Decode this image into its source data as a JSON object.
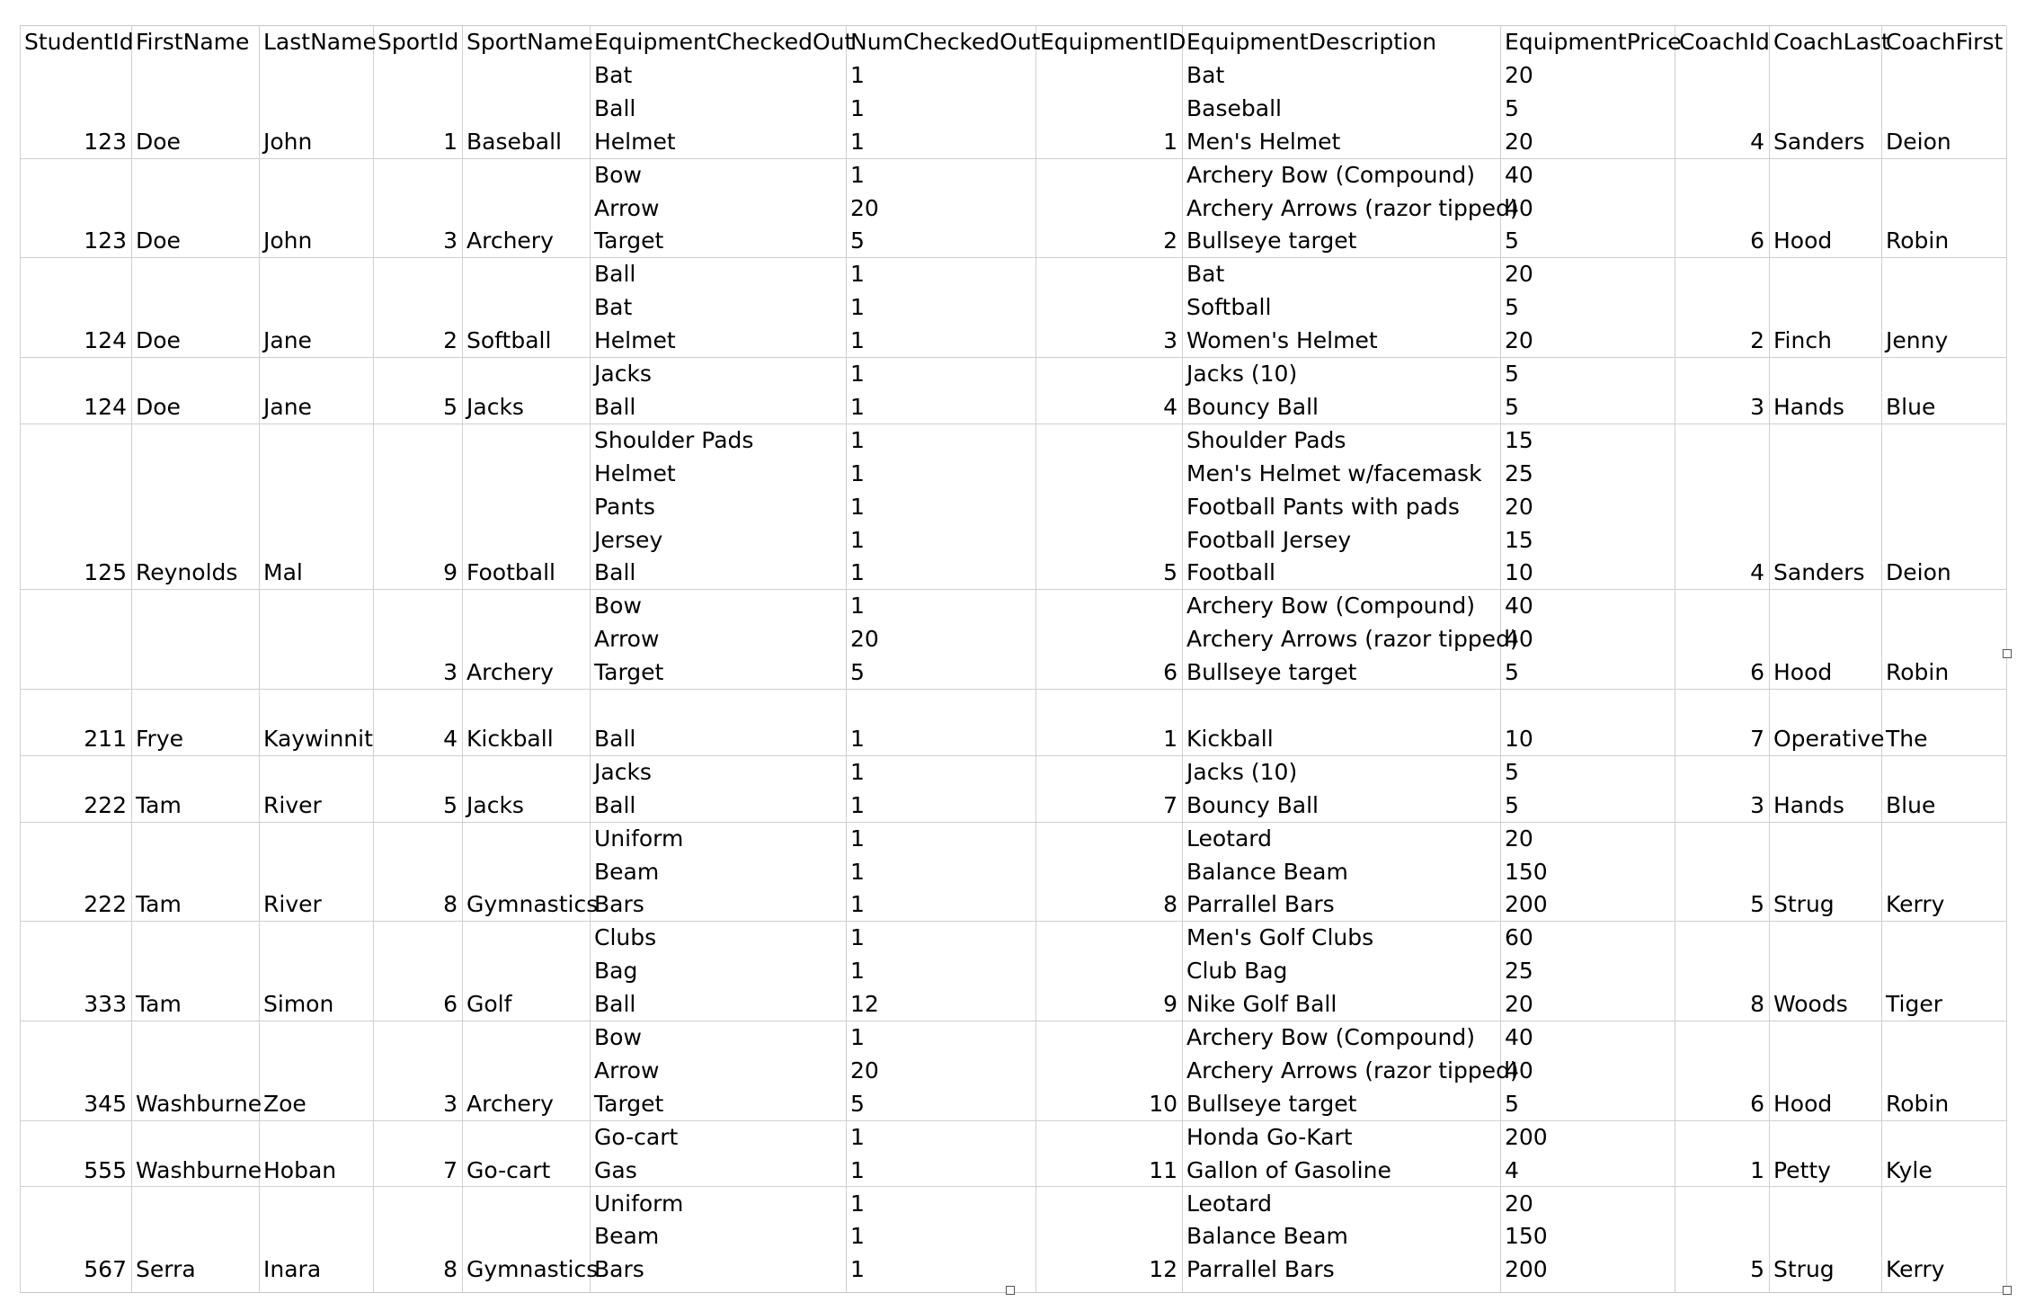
{
  "table": {
    "headers": [
      "StudentId",
      "FirstName",
      "LastName",
      "SportId",
      "SportName",
      "EquipmentCheckedOut",
      "NumCheckedOut",
      "EquipmentID",
      "EquipmentDescription",
      "EquipmentPrice",
      "CoachId",
      "CoachLast",
      "CoachFirst"
    ],
    "rows": [
      [
        "",
        "",
        "",
        "",
        "",
        "Bat",
        "1",
        "",
        "Bat",
        "20",
        "",
        "",
        ""
      ],
      [
        "",
        "",
        "",
        "",
        "",
        "Ball",
        "1",
        "",
        "Baseball",
        "5",
        "",
        "",
        ""
      ],
      [
        "123",
        "Doe",
        "John",
        "1",
        "Baseball",
        "Helmet",
        "1",
        "1",
        "Men's Helmet",
        "20",
        "4",
        "Sanders",
        "Deion"
      ],
      [
        "",
        "",
        "",
        "",
        "",
        "Bow",
        "1",
        "",
        "Archery Bow (Compound)",
        "40",
        "",
        "",
        ""
      ],
      [
        "",
        "",
        "",
        "",
        "",
        "Arrow",
        "20",
        "",
        "Archery Arrows (razor tipped)",
        "40",
        "",
        "",
        ""
      ],
      [
        "123",
        "Doe",
        "John",
        "3",
        "Archery",
        "Target",
        "5",
        "2",
        "Bullseye target",
        "5",
        "6",
        "Hood",
        "Robin"
      ],
      [
        "",
        "",
        "",
        "",
        "",
        "Ball",
        "1",
        "",
        "Bat",
        "20",
        "",
        "",
        ""
      ],
      [
        "",
        "",
        "",
        "",
        "",
        "Bat",
        "1",
        "",
        "Softball",
        "5",
        "",
        "",
        ""
      ],
      [
        "124",
        "Doe",
        "Jane",
        "2",
        "Softball",
        "Helmet",
        "1",
        "3",
        "Women's Helmet",
        "20",
        "2",
        "Finch",
        "Jenny"
      ],
      [
        "",
        "",
        "",
        "",
        "",
        "Jacks",
        "1",
        "",
        "Jacks (10)",
        "5",
        "",
        "",
        ""
      ],
      [
        "124",
        "Doe",
        "Jane",
        "5",
        "Jacks",
        "Ball",
        "1",
        "4",
        "Bouncy Ball",
        "5",
        "3",
        "Hands",
        "Blue"
      ],
      [
        "",
        "",
        "",
        "",
        "",
        "Shoulder Pads",
        "1",
        "",
        "Shoulder Pads",
        "15",
        "",
        "",
        ""
      ],
      [
        "",
        "",
        "",
        "",
        "",
        "Helmet",
        "1",
        "",
        "Men's Helmet w/facemask",
        "25",
        "",
        "",
        ""
      ],
      [
        "",
        "",
        "",
        "",
        "",
        "Pants",
        "1",
        "",
        "Football Pants with pads",
        "20",
        "",
        "",
        ""
      ],
      [
        "",
        "",
        "",
        "",
        "",
        "Jersey",
        "1",
        "",
        "Football Jersey",
        "15",
        "",
        "",
        ""
      ],
      [
        "125",
        "Reynolds",
        "Mal",
        "9",
        "Football",
        "Ball",
        "1",
        "5",
        "Football",
        "10",
        "4",
        "Sanders",
        "Deion"
      ],
      [
        "",
        "",
        "",
        "",
        "",
        "Bow",
        "1",
        "",
        "Archery Bow (Compound)",
        "40",
        "",
        "",
        ""
      ],
      [
        "",
        "",
        "",
        "",
        "",
        "Arrow",
        "20",
        "",
        "Archery Arrows (razor tipped)",
        "40",
        "",
        "",
        ""
      ],
      [
        "",
        "",
        "",
        "3",
        "Archery",
        "Target",
        "5",
        "6",
        "Bullseye target",
        "5",
        "6",
        "Hood",
        "Robin"
      ],
      [
        "",
        "",
        "",
        "",
        "",
        "",
        "",
        "",
        "",
        "",
        "",
        "",
        ""
      ],
      [
        "211",
        "Frye",
        "Kaywinnit",
        "4",
        "Kickball",
        "Ball",
        "1",
        "1",
        "Kickball",
        "10",
        "7",
        "Operative",
        "The"
      ],
      [
        "",
        "",
        "",
        "",
        "",
        "Jacks",
        "1",
        "",
        "Jacks (10)",
        "5",
        "",
        "",
        ""
      ],
      [
        "222",
        "Tam",
        "River",
        "5",
        "Jacks",
        "Ball",
        "1",
        "7",
        "Bouncy Ball",
        "5",
        "3",
        "Hands",
        "Blue"
      ],
      [
        "",
        "",
        "",
        "",
        "",
        "Uniform",
        "1",
        "",
        "Leotard",
        "20",
        "",
        "",
        ""
      ],
      [
        "",
        "",
        "",
        "",
        "",
        "Beam",
        "1",
        "",
        "Balance Beam",
        "150",
        "",
        "",
        ""
      ],
      [
        "222",
        "Tam",
        "River",
        "8",
        "Gymnastics",
        "Bars",
        "1",
        "8",
        "Parrallel Bars",
        "200",
        "5",
        "Strug",
        "Kerry"
      ],
      [
        "",
        "",
        "",
        "",
        "",
        "Clubs",
        "1",
        "",
        "Men's Golf Clubs",
        "60",
        "",
        "",
        ""
      ],
      [
        "",
        "",
        "",
        "",
        "",
        "Bag",
        "1",
        "",
        "Club Bag",
        "25",
        "",
        "",
        ""
      ],
      [
        "333",
        "Tam",
        "Simon",
        "6",
        "Golf",
        "Ball",
        "12",
        "9",
        "Nike Golf Ball",
        "20",
        "8",
        "Woods",
        "Tiger"
      ],
      [
        "",
        "",
        "",
        "",
        "",
        "Bow",
        "1",
        "",
        "Archery Bow (Compound)",
        "40",
        "",
        "",
        ""
      ],
      [
        "",
        "",
        "",
        "",
        "",
        "Arrow",
        "20",
        "",
        "Archery Arrows (razor tipped)",
        "40",
        "",
        "",
        ""
      ],
      [
        "345",
        "Washburne",
        "Zoe",
        "3",
        "Archery",
        "Target",
        "5",
        "10",
        "Bullseye target",
        "5",
        "6",
        "Hood",
        "Robin"
      ],
      [
        "",
        "",
        "",
        "",
        "",
        "Go-cart",
        "1",
        "",
        "Honda Go-Kart",
        "200",
        "",
        "",
        ""
      ],
      [
        "555",
        "Washburne",
        "Hoban",
        "7",
        "Go-cart",
        "Gas",
        "1",
        "11",
        "Gallon of Gasoline",
        "4",
        "1",
        "Petty",
        "Kyle"
      ],
      [
        "",
        "",
        "",
        "",
        "",
        "Uniform",
        "1",
        "",
        "Leotard",
        "20",
        "",
        "",
        ""
      ],
      [
        "",
        "",
        "",
        "",
        "",
        "Beam",
        "1",
        "",
        "Balance Beam",
        "150",
        "",
        "",
        ""
      ],
      [
        "567",
        "Serra",
        "Inara",
        "8",
        "Gymnastics",
        "Bars",
        "1",
        "12",
        "Parrallel Bars",
        "200",
        "5",
        "Strug",
        "Kerry"
      ]
    ]
  },
  "colors": {
    "gridline": "#d0d0d0",
    "text": "#000000",
    "background": "#ffffff"
  }
}
